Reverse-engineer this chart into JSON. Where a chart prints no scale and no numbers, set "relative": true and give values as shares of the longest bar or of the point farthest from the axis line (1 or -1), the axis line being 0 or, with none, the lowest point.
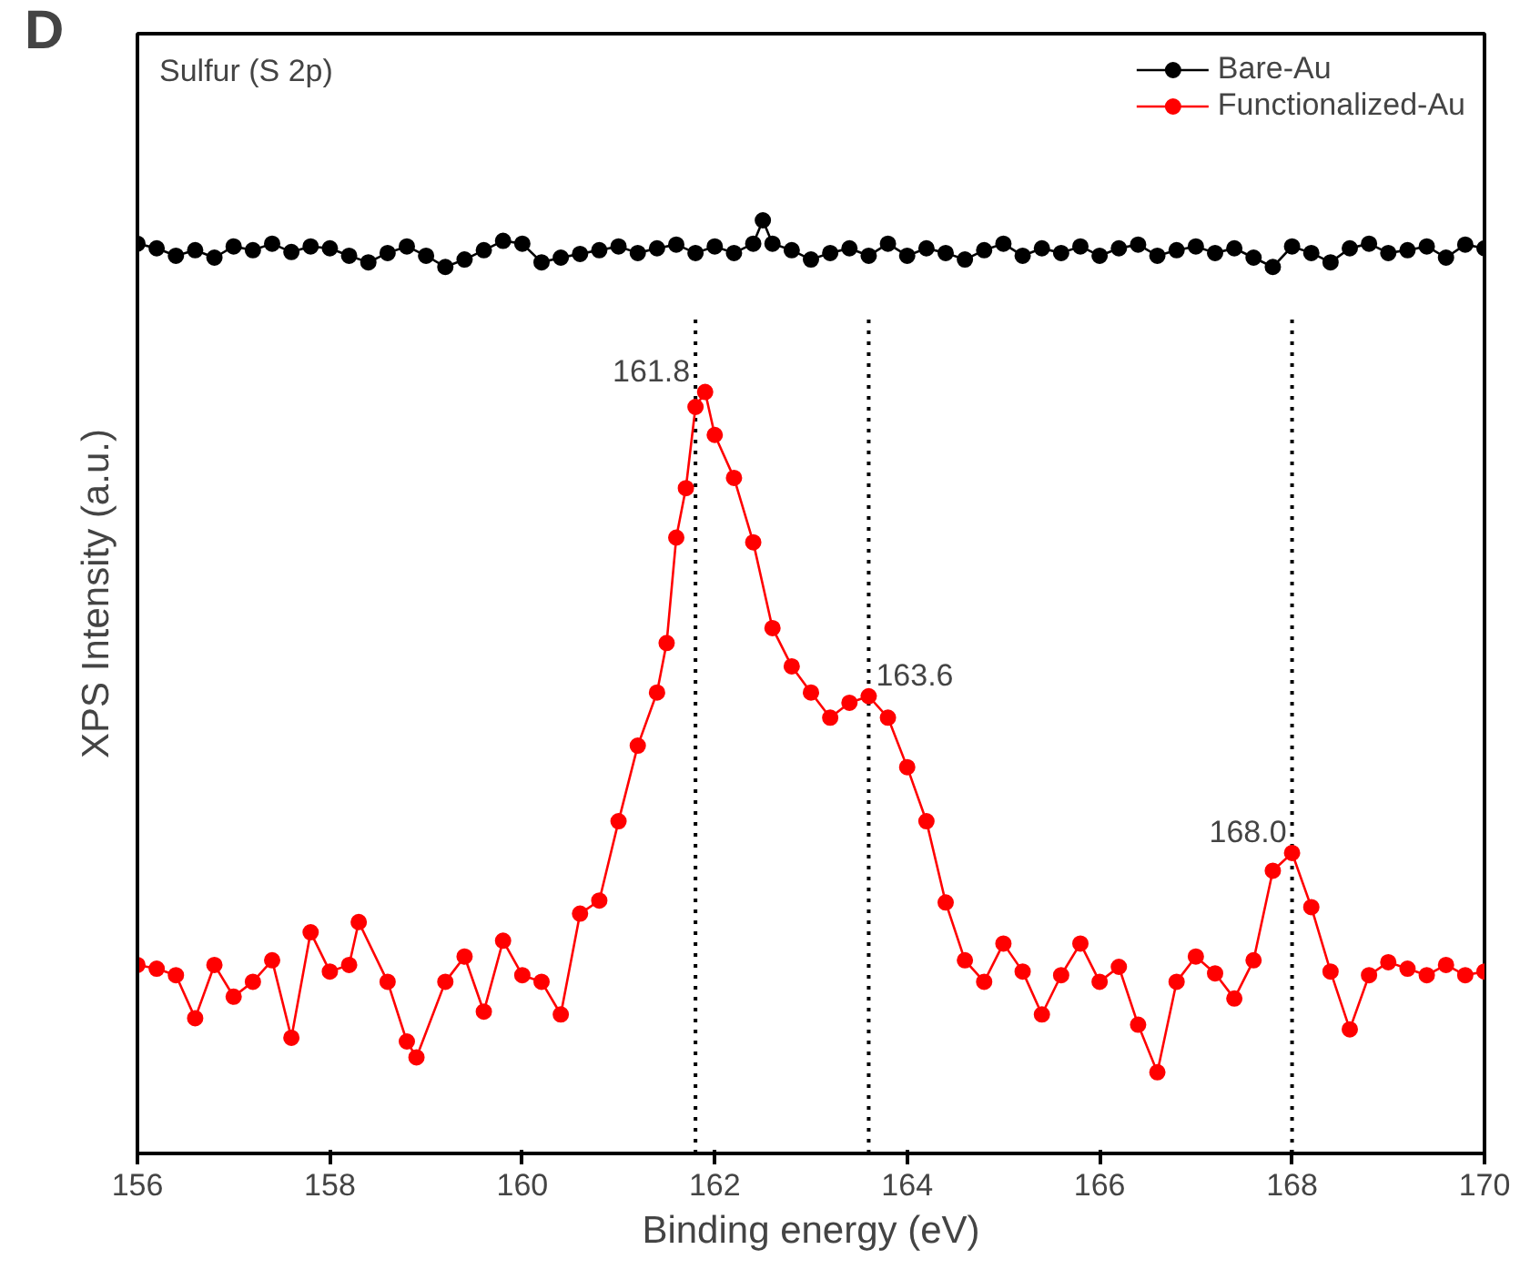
{
  "chart_data": {
    "type": "line",
    "title": "Sulfur (S 2p)",
    "xlabel": "Binding energy (eV)",
    "ylabel": "XPS Intensity (a.u.)",
    "relative": true,
    "xlim": [
      156,
      170
    ],
    "xticks": [
      156,
      158,
      160,
      162,
      164,
      166,
      168,
      170
    ],
    "grid": false,
    "legend": "top right",
    "marker": "circle",
    "line_style": "solid",
    "series": [
      {
        "name": "Bare-Au",
        "color": "#000000",
        "x": [
          156.0,
          156.2,
          156.4,
          156.6,
          156.8,
          157.0,
          157.2,
          157.4,
          157.6,
          157.8,
          158.0,
          158.2,
          158.4,
          158.6,
          158.8,
          159.0,
          159.2,
          159.4,
          159.6,
          159.8,
          160.0,
          160.2,
          160.4,
          160.6,
          160.8,
          161.0,
          161.2,
          161.4,
          161.6,
          161.8,
          162.0,
          162.2,
          162.4,
          162.5,
          162.6,
          162.8,
          163.0,
          163.2,
          163.4,
          163.6,
          163.8,
          164.0,
          164.2,
          164.4,
          164.6,
          164.8,
          165.0,
          165.2,
          165.4,
          165.6,
          165.8,
          166.0,
          166.2,
          166.4,
          166.6,
          166.8,
          167.0,
          167.2,
          167.4,
          167.6,
          167.8,
          168.0,
          168.2,
          168.4,
          168.6,
          168.8,
          169.0,
          169.2,
          169.4,
          169.6,
          169.8,
          170.0
        ],
        "values": [
          0.975,
          0.97,
          0.962,
          0.968,
          0.96,
          0.972,
          0.968,
          0.975,
          0.966,
          0.972,
          0.97,
          0.962,
          0.955,
          0.965,
          0.972,
          0.962,
          0.95,
          0.958,
          0.968,
          0.978,
          0.975,
          0.955,
          0.96,
          0.964,
          0.968,
          0.972,
          0.965,
          0.97,
          0.974,
          0.965,
          0.972,
          0.965,
          0.975,
          1.0,
          0.975,
          0.968,
          0.958,
          0.965,
          0.97,
          0.962,
          0.975,
          0.962,
          0.97,
          0.965,
          0.958,
          0.968,
          0.975,
          0.962,
          0.97,
          0.965,
          0.972,
          0.962,
          0.97,
          0.974,
          0.962,
          0.968,
          0.972,
          0.965,
          0.97,
          0.96,
          0.95,
          0.972,
          0.965,
          0.955,
          0.97,
          0.975,
          0.965,
          0.968,
          0.972,
          0.96,
          0.974,
          0.97
        ]
      },
      {
        "name": "Functionalized-Au",
        "color": "#ff0000",
        "x": [
          156.0,
          156.2,
          156.4,
          156.6,
          156.8,
          157.0,
          157.2,
          157.4,
          157.6,
          157.8,
          158.0,
          158.2,
          158.3,
          158.6,
          158.8,
          158.9,
          159.2,
          159.4,
          159.6,
          159.8,
          160.0,
          160.2,
          160.4,
          160.6,
          160.8,
          161.0,
          161.2,
          161.4,
          161.5,
          161.6,
          161.7,
          161.8,
          161.9,
          162.0,
          162.2,
          162.4,
          162.6,
          162.8,
          163.0,
          163.2,
          163.4,
          163.6,
          163.8,
          164.0,
          164.2,
          164.4,
          164.6,
          164.8,
          165.0,
          165.2,
          165.4,
          165.6,
          165.8,
          166.0,
          166.2,
          166.4,
          166.6,
          166.8,
          167.0,
          167.2,
          167.4,
          167.6,
          167.8,
          168.0,
          168.2,
          168.4,
          168.6,
          168.8,
          169.0,
          169.2,
          169.4,
          169.6,
          169.8,
          170.0
        ],
        "values": [
          0.202,
          0.198,
          0.191,
          0.145,
          0.202,
          0.168,
          0.184,
          0.207,
          0.124,
          0.237,
          0.195,
          0.202,
          0.248,
          0.184,
          0.12,
          0.103,
          0.184,
          0.211,
          0.152,
          0.228,
          0.191,
          0.184,
          0.149,
          0.257,
          0.271,
          0.356,
          0.437,
          0.494,
          0.547,
          0.66,
          0.713,
          0.8,
          0.816,
          0.77,
          0.724,
          0.655,
          0.563,
          0.522,
          0.494,
          0.467,
          0.483,
          0.49,
          0.467,
          0.414,
          0.356,
          0.269,
          0.207,
          0.184,
          0.225,
          0.195,
          0.149,
          0.191,
          0.225,
          0.184,
          0.2,
          0.138,
          0.087,
          0.184,
          0.211,
          0.193,
          0.166,
          0.207,
          0.303,
          0.322,
          0.264,
          0.195,
          0.133,
          0.191,
          0.205,
          0.198,
          0.191,
          0.202,
          0.191,
          0.195
        ]
      }
    ],
    "ref_lines": [
      {
        "axis": "x",
        "value": 161.8,
        "color": "#000000",
        "line_style": "dotted"
      },
      {
        "axis": "x",
        "value": 163.6,
        "color": "#000000",
        "line_style": "dotted"
      },
      {
        "axis": "x",
        "value": 168.0,
        "color": "#000000",
        "line_style": "dotted"
      }
    ],
    "annotations": [
      "D",
      {
        "text": "161.8",
        "x": 161.8,
        "y": 0.816
      },
      {
        "text": "163.6",
        "x": 163.6,
        "y": 0.49
      },
      {
        "text": "168.0",
        "x": 168.0,
        "y": 0.322
      }
    ]
  }
}
